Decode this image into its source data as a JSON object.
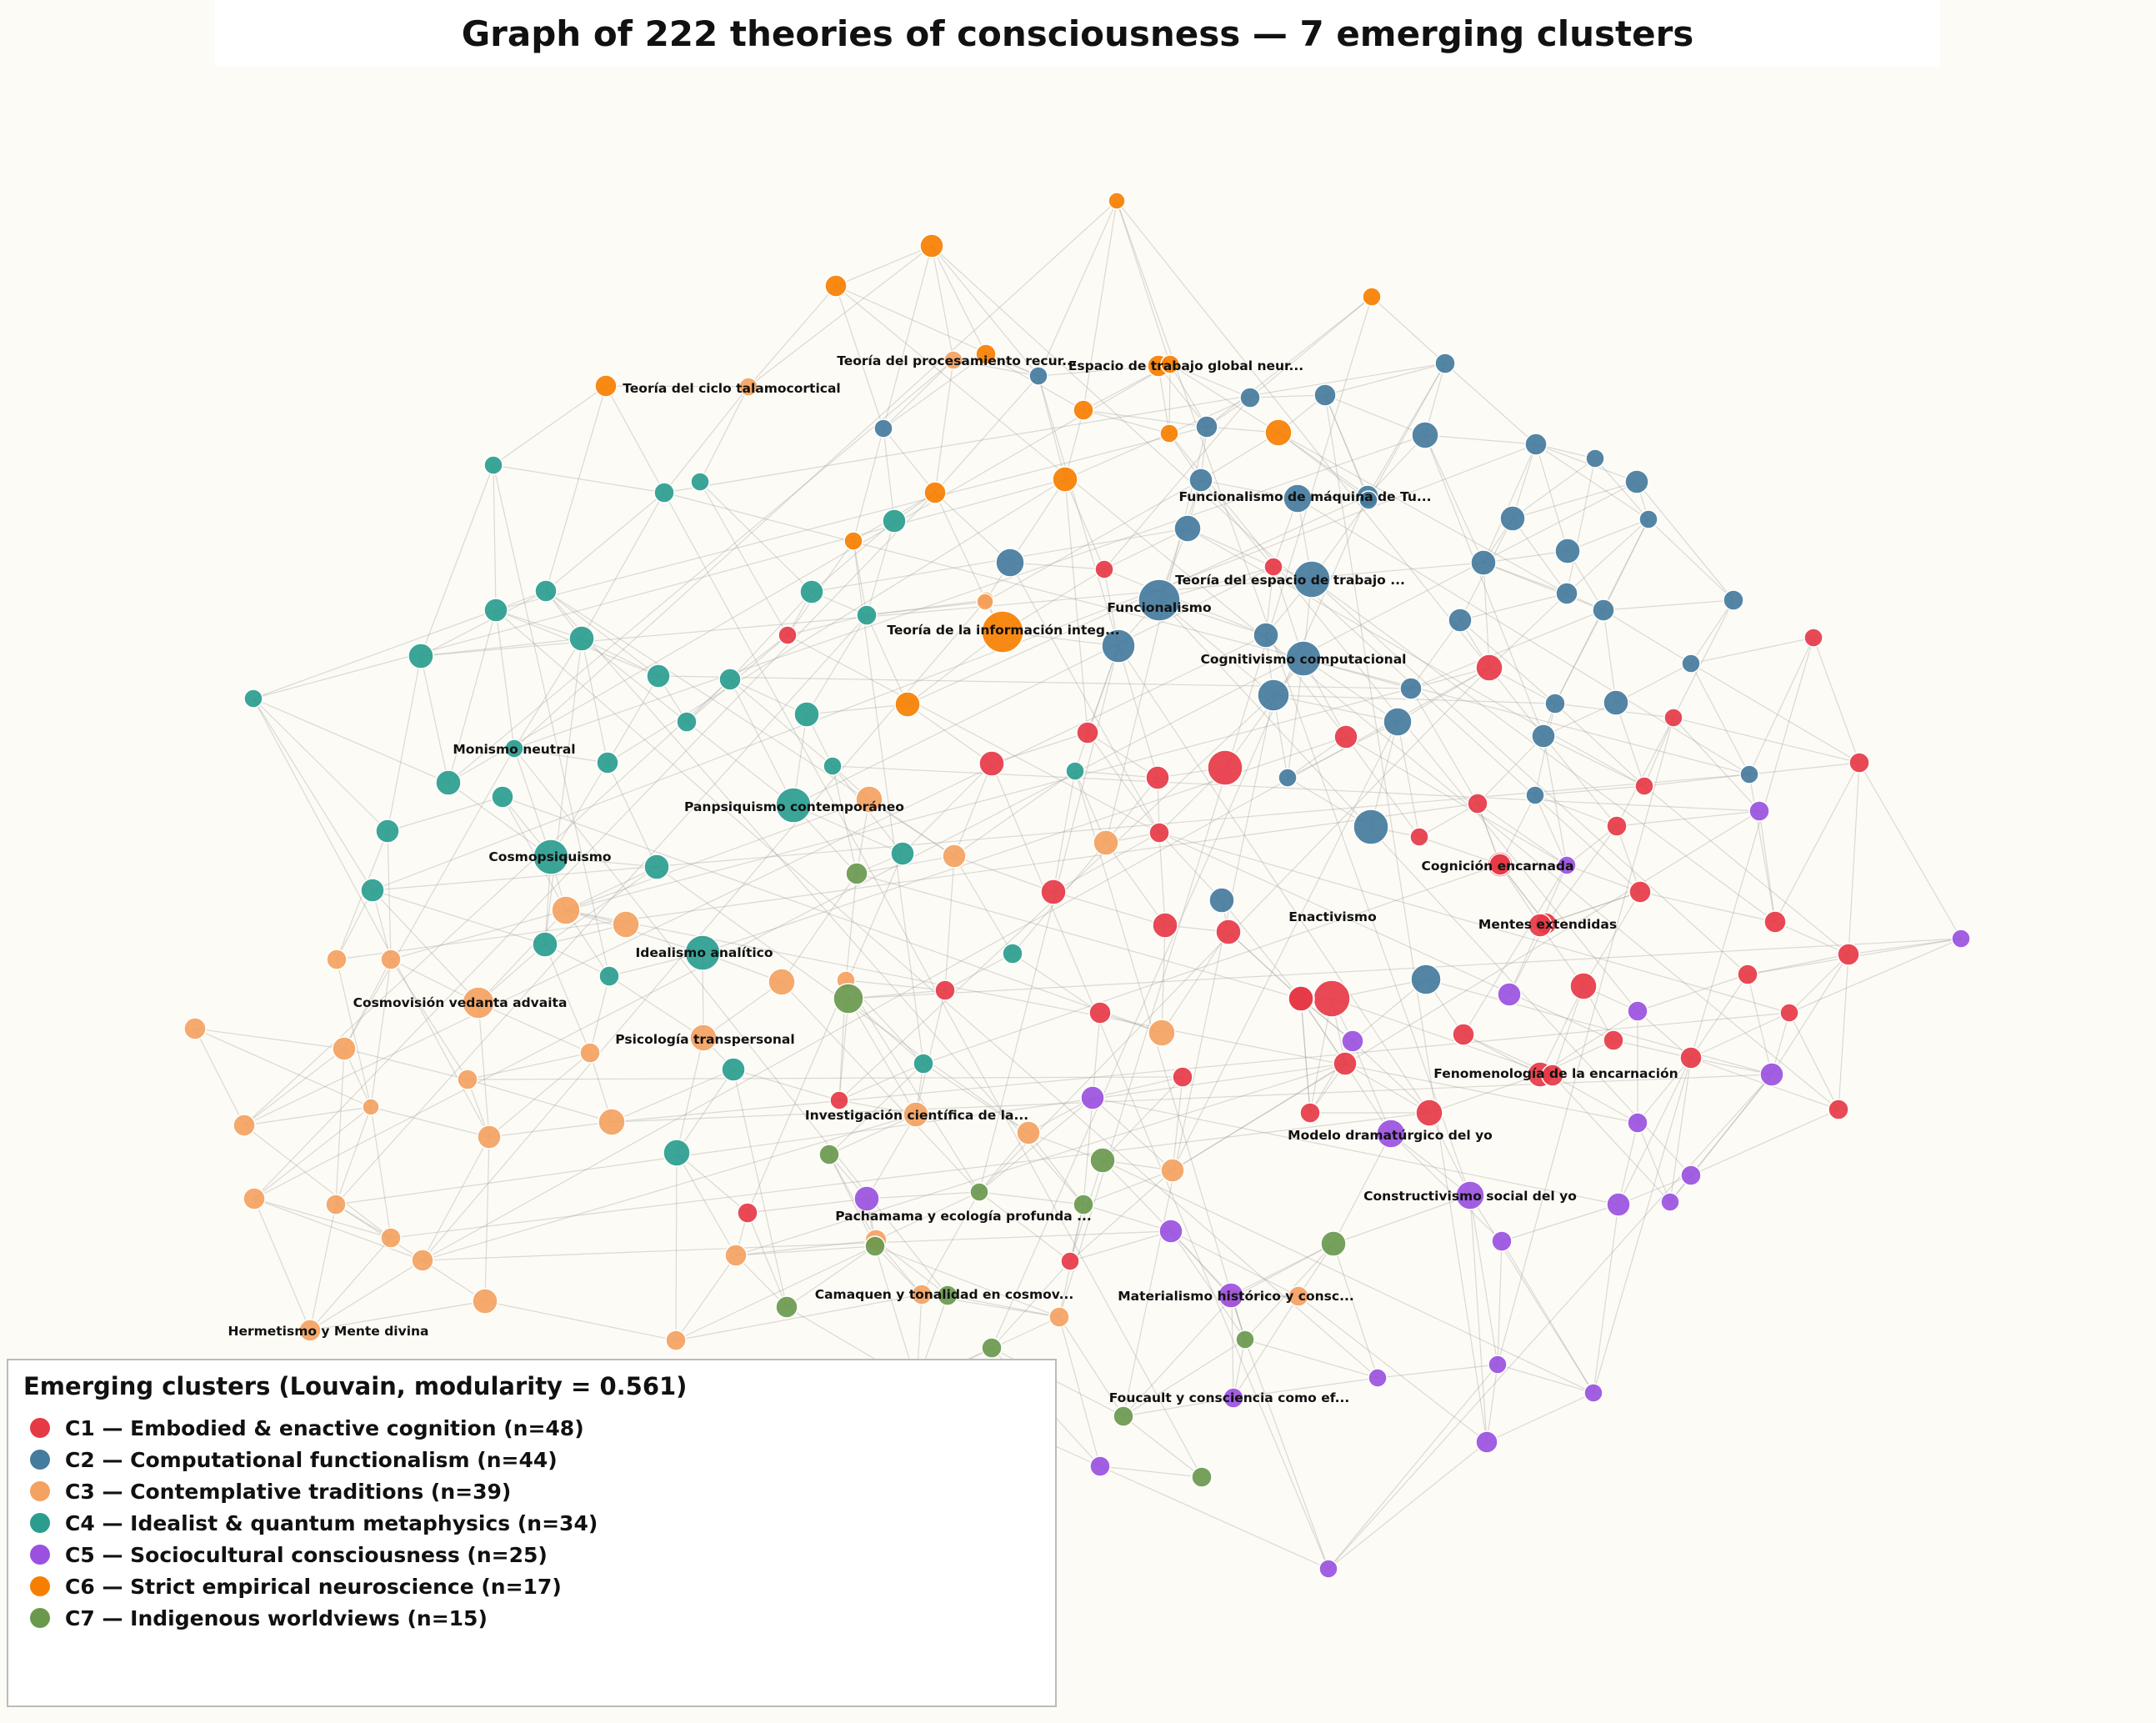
{
  "title": "Graph of 222 theories of consciousness — 7 emerging clusters",
  "legend": {
    "title": "Emerging clusters (Louvain, modularity = 0.561)",
    "items": [
      {
        "label": "C1 — Embodied & enactive cognition (n=48)",
        "color": "#e63946"
      },
      {
        "label": "C2 — Computational functionalism (n=44)",
        "color": "#457b9d"
      },
      {
        "label": "C3 — Contemplative traditions (n=39)",
        "color": "#f4a261"
      },
      {
        "label": "C4 — Idealist & quantum metaphysics (n=34)",
        "color": "#2a9d8f"
      },
      {
        "label": "C5 — Sociocultural consciousness (n=25)",
        "color": "#9b51e0"
      },
      {
        "label": "C6 — Strict empirical neuroscience (n=17)",
        "color": "#f77f00"
      },
      {
        "label": "C7 — Indigenous worldviews (n=15)",
        "color": "#6a994e"
      }
    ]
  },
  "node_labels": [
    "Teoría del procesamiento recur...",
    "Espacio de trabajo global neur...",
    "Teoría del ciclo talamocortical",
    "Funcionalismo de máquina de Tu...",
    "Teoría del espacio de trabajo ...",
    "Funcionalismo",
    "Teoría de la información integ...",
    "Cognitivismo computacional",
    "Monismo neutral",
    "Panpsiquismo contemporáneo",
    "Cosmopsiquismo",
    "Cognición encarnada",
    "Enactivismo",
    "Mentes extendidas",
    "Idealismo analítico",
    "Cosmovisión vedanta advaita",
    "Psicología transpersonal",
    "Fenomenología de la encarnación",
    "Investigación científica de la...",
    "Modelo dramatúrgico del yo",
    "Constructivismo social del yo",
    "Pachamama y ecología profunda ...",
    "Camaquen y tonalidad en cosmov...",
    "Materialismo histórico y consc...",
    "Hermetismo y Mente divina",
    "Foucault y consciencia como ef..."
  ]
}
